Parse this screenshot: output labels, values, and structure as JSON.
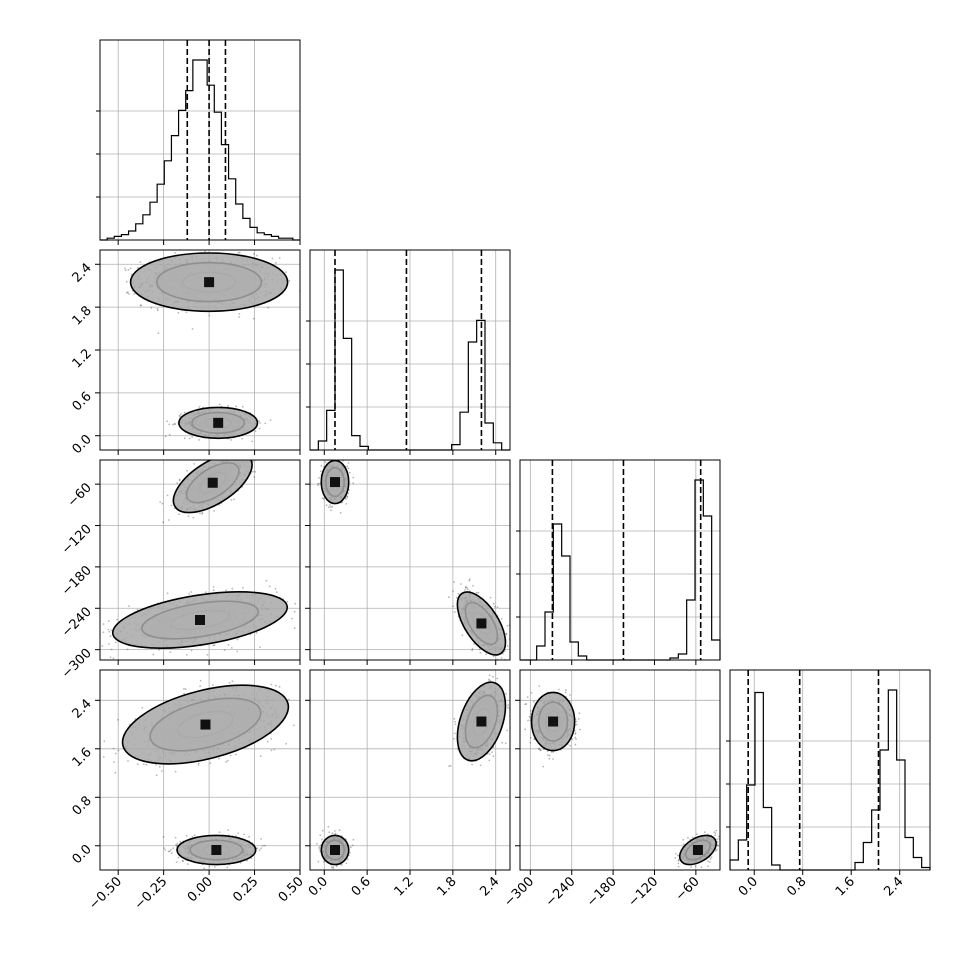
{
  "chart_data": {
    "type": "corner",
    "title": "",
    "parameters": [
      {
        "range": [
          -0.6,
          0.5
        ],
        "ticks": [
          -0.5,
          -0.25,
          0.0,
          0.25,
          0.5
        ],
        "tick_labels": [
          "−0.50",
          "−0.25",
          "0.00",
          "0.25",
          "0.50"
        ],
        "quantiles": [
          -0.12,
          0.0,
          0.09
        ]
      },
      {
        "range": [
          -0.2,
          2.6
        ],
        "ticks": [
          0.0,
          0.6,
          1.2,
          1.8,
          2.4
        ],
        "tick_labels": [
          "0.0",
          "0.6",
          "1.2",
          "1.8",
          "2.4"
        ],
        "quantiles": [
          0.15,
          1.15,
          2.2
        ]
      },
      {
        "range": [
          -315,
          -25
        ],
        "ticks": [
          -300,
          -240,
          -180,
          -120,
          -60
        ],
        "tick_labels": [
          "−300",
          "−240",
          "−180",
          "−120",
          "−60"
        ],
        "quantiles": [
          -268,
          -165,
          -53
        ]
      },
      {
        "range": [
          -0.4,
          2.9
        ],
        "ticks": [
          0.0,
          0.8,
          1.6,
          2.4
        ],
        "tick_labels": [
          "0.0",
          "0.8",
          "1.6",
          "2.4"
        ],
        "quantiles": [
          -0.1,
          0.75,
          2.05
        ]
      }
    ],
    "histograms": [
      {
        "index": 0,
        "bins": [
          -0.6,
          0.5
        ],
        "counts": [
          0,
          1,
          2,
          3,
          5,
          9,
          14,
          21,
          31,
          44,
          58,
          72,
          83,
          100,
          100,
          86,
          71,
          53,
          34,
          20,
          12,
          7,
          4,
          3,
          2,
          1,
          1,
          0
        ]
      },
      {
        "index": 1,
        "bins": [
          -0.2,
          2.6
        ],
        "counts": [
          0,
          5,
          22,
          100,
          62,
          8,
          2,
          0,
          0,
          0,
          0,
          0,
          0,
          0,
          0,
          0,
          0,
          3,
          21,
          60,
          72,
          15,
          4,
          0
        ]
      },
      {
        "index": 2,
        "bins": [
          -315,
          -25
        ],
        "counts": [
          0,
          0,
          7,
          24,
          68,
          52,
          9,
          2,
          0,
          0,
          0,
          0,
          0,
          0,
          0,
          0,
          0,
          0,
          1,
          3,
          30,
          90,
          72,
          10
        ]
      },
      {
        "index": 3,
        "bins": [
          -0.4,
          2.9
        ],
        "counts": [
          4,
          12,
          34,
          71,
          25,
          2,
          0,
          0,
          0,
          0,
          0,
          0,
          0,
          0,
          0,
          3,
          11,
          24,
          48,
          72,
          44,
          13,
          5,
          1
        ]
      }
    ],
    "pairs": [
      {
        "x_index": 0,
        "y_index": 1,
        "clusters": [
          {
            "cx": 0.0,
            "cy": 2.15,
            "sx": 0.18,
            "sy": 0.17,
            "rho": 0.0,
            "weight": 1.0
          },
          {
            "cx": 0.05,
            "cy": 0.18,
            "sx": 0.09,
            "sy": 0.09,
            "rho": 0.0,
            "weight": 1.0
          }
        ]
      },
      {
        "x_index": 0,
        "y_index": 2,
        "clusters": [
          {
            "cx": 0.02,
            "cy": -58,
            "sx": 0.09,
            "sy": 18,
            "rho": 0.6,
            "weight": 1.0
          },
          {
            "cx": -0.05,
            "cy": -257,
            "sx": 0.2,
            "sy": 17,
            "rho": 0.45,
            "weight": 1.0
          }
        ]
      },
      {
        "x_index": 0,
        "y_index": 3,
        "clusters": [
          {
            "cx": -0.02,
            "cy": 2.0,
            "sx": 0.19,
            "sy": 0.27,
            "rho": 0.45,
            "weight": 1.0
          },
          {
            "cx": 0.04,
            "cy": -0.07,
            "sx": 0.09,
            "sy": 0.1,
            "rho": 0.0,
            "weight": 1.0
          }
        ]
      },
      {
        "x_index": 1,
        "y_index": 2,
        "clusters": [
          {
            "cx": 0.15,
            "cy": -57,
            "sx": 0.08,
            "sy": 13,
            "rho": 0.0,
            "weight": 1.0
          },
          {
            "cx": 2.2,
            "cy": -262,
            "sx": 0.14,
            "sy": 19,
            "rho": -0.6,
            "weight": 1.0
          }
        ]
      },
      {
        "x_index": 1,
        "y_index": 3,
        "clusters": [
          {
            "cx": 2.2,
            "cy": 2.05,
            "sx": 0.14,
            "sy": 0.27,
            "rho": 0.4,
            "weight": 1.0
          },
          {
            "cx": 0.15,
            "cy": -0.07,
            "sx": 0.08,
            "sy": 0.1,
            "rho": 0.0,
            "weight": 1.0
          }
        ]
      },
      {
        "x_index": 2,
        "y_index": 3,
        "clusters": [
          {
            "cx": -267,
            "cy": 2.05,
            "sx": 13,
            "sy": 0.2,
            "rho": 0.0,
            "weight": 1.0
          },
          {
            "cx": -57,
            "cy": -0.07,
            "sx": 11,
            "sy": 0.1,
            "rho": 0.45,
            "weight": 1.0
          }
        ]
      }
    ],
    "grid": true,
    "contour_levels": [
      0.8,
      1.6,
      2.4
    ]
  }
}
